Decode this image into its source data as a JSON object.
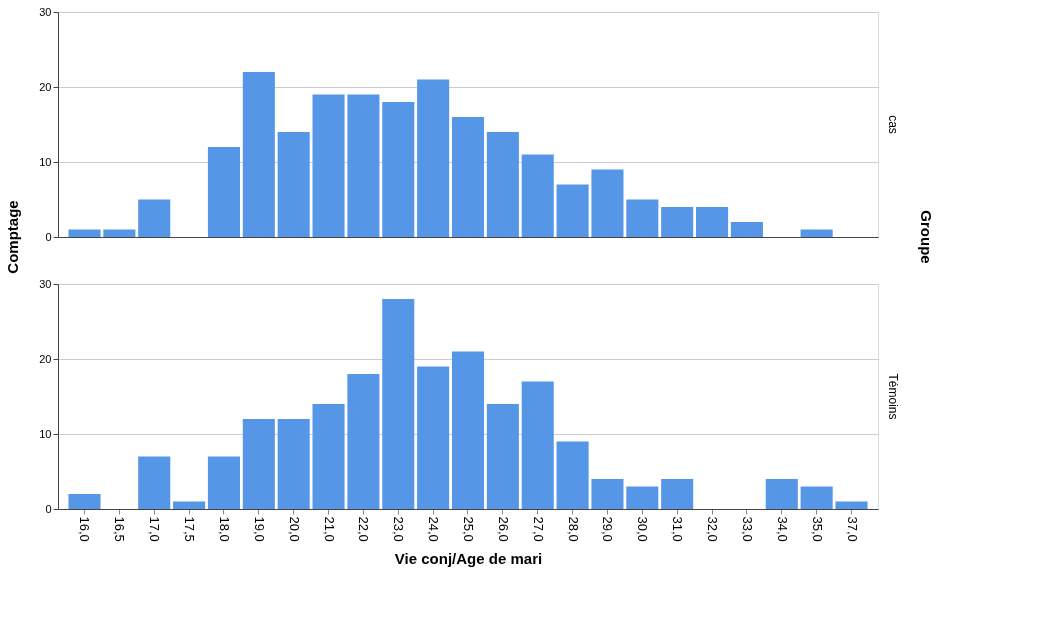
{
  "chart_data": [
    {
      "type": "bar",
      "ylabel": "Comptage",
      "y2label": "cas",
      "annotations": [
        "Groupe"
      ],
      "color": "#5596e6",
      "tick_labels": "y",
      "grid": "y",
      "categories": [
        "16,0",
        "16,5",
        "17,0",
        "17,5",
        "18,0",
        "19,0",
        "20,0",
        "21,0",
        "22,0",
        "23,0",
        "24,0",
        "25,0",
        "26,0",
        "27,0",
        "28,0",
        "29,0",
        "30,0",
        "31,0",
        "32,0",
        "33,0",
        "34,0",
        "35,0",
        "37,0"
      ],
      "values": [
        1,
        1,
        5,
        0,
        12,
        22,
        14,
        19,
        19,
        18,
        21,
        16,
        14,
        11,
        7,
        9,
        5,
        4,
        4,
        2,
        0,
        1,
        0
      ],
      "ylim": [
        0,
        30
      ],
      "yticks": [
        0,
        10,
        20,
        30
      ]
    },
    {
      "type": "bar",
      "xlabel": "Vie conj/Age de mari",
      "y2label": "Témoins",
      "color": "#5596e6",
      "grid": "y",
      "categories": [
        "16,0",
        "16,5",
        "17,0",
        "17,5",
        "18,0",
        "19,0",
        "20,0",
        "21,0",
        "22,0",
        "23,0",
        "24,0",
        "25,0",
        "26,0",
        "27,0",
        "28,0",
        "29,0",
        "30,0",
        "31,0",
        "32,0",
        "33,0",
        "34,0",
        "35,0",
        "37,0"
      ],
      "values": [
        2,
        0,
        7,
        1,
        7,
        12,
        12,
        14,
        18,
        28,
        19,
        21,
        14,
        17,
        9,
        4,
        3,
        4,
        0,
        0,
        4,
        3,
        1
      ],
      "ylim": [
        0,
        30
      ],
      "yticks": [
        0,
        10,
        20,
        30
      ]
    }
  ]
}
